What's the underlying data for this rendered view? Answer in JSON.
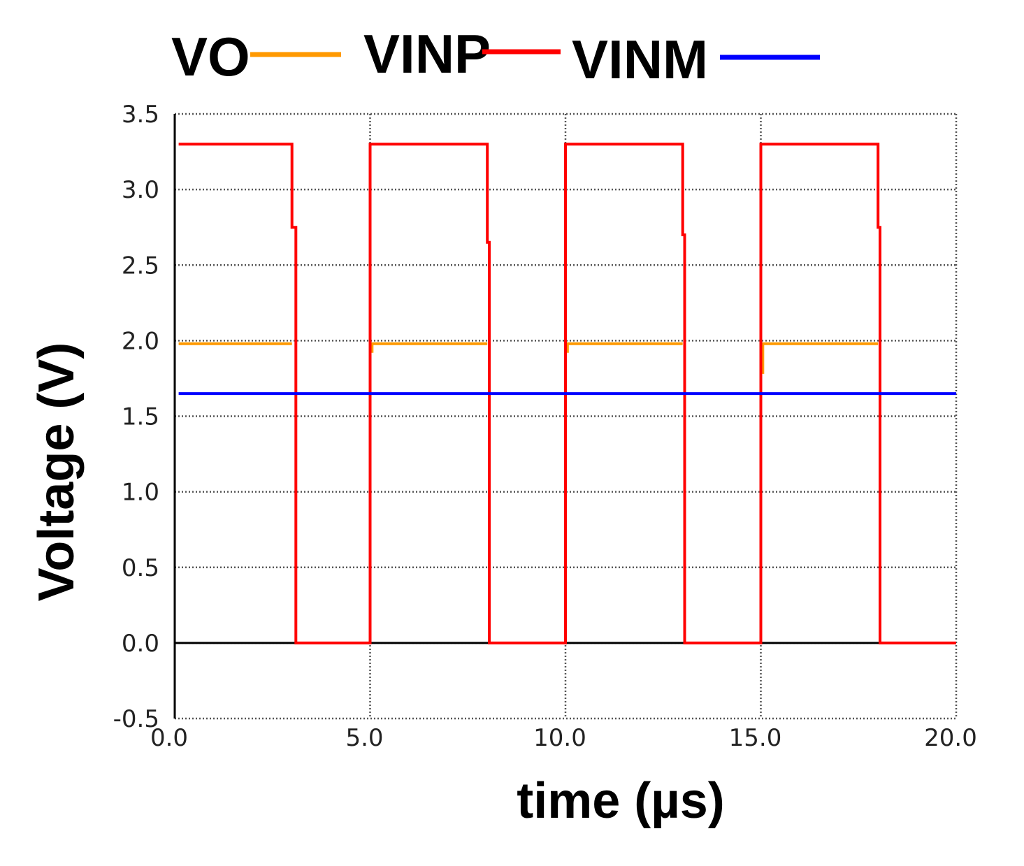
{
  "chart_data": {
    "type": "line",
    "xlabel": "time (µs)",
    "ylabel": "Voltage  (V)",
    "xlim": [
      0,
      20
    ],
    "ylim": [
      -0.5,
      3.5
    ],
    "x_ticks": [
      "0.0",
      "5.0",
      "10.0",
      "15.0",
      "20.0"
    ],
    "y_ticks": [
      "-0.5",
      "0.0",
      "0.5",
      "1.0",
      "1.5",
      "2.0",
      "2.5",
      "3.0",
      "3.5"
    ],
    "grid": true,
    "legend_position": "top",
    "series": [
      {
        "name": "VO",
        "color": "#ff9900",
        "segments": [
          [
            [
              0.1,
              1.98
            ],
            [
              3.0,
              1.98
            ]
          ],
          [
            [
              5.05,
              1.92
            ],
            [
              5.05,
              1.98
            ],
            [
              8.0,
              1.98
            ]
          ],
          [
            [
              10.05,
              1.92
            ],
            [
              10.05,
              1.98
            ],
            [
              13.0,
              1.98
            ]
          ],
          [
            [
              15.05,
              1.78
            ],
            [
              15.05,
              1.98
            ],
            [
              18.0,
              1.98
            ]
          ]
        ]
      },
      {
        "name": "VINP",
        "color": "#ff0000",
        "points": [
          [
            0.1,
            3.3
          ],
          [
            3.0,
            3.3
          ],
          [
            3.0,
            2.75
          ],
          [
            3.1,
            2.75
          ],
          [
            3.1,
            0
          ],
          [
            5.0,
            0
          ],
          [
            5.0,
            3.3
          ],
          [
            8.0,
            3.3
          ],
          [
            8.0,
            2.65
          ],
          [
            8.05,
            2.65
          ],
          [
            8.05,
            0
          ],
          [
            10.0,
            0
          ],
          [
            10.0,
            3.3
          ],
          [
            13.0,
            3.3
          ],
          [
            13.0,
            2.7
          ],
          [
            13.05,
            2.7
          ],
          [
            13.05,
            0
          ],
          [
            15.0,
            0
          ],
          [
            15.0,
            3.3
          ],
          [
            18.0,
            3.3
          ],
          [
            18.0,
            2.75
          ],
          [
            18.05,
            2.75
          ],
          [
            18.05,
            0
          ],
          [
            20.0,
            0
          ]
        ]
      },
      {
        "name": "VINM",
        "color": "#0000ff",
        "points": [
          [
            0.1,
            1.65
          ],
          [
            20.0,
            1.65
          ]
        ]
      }
    ]
  }
}
